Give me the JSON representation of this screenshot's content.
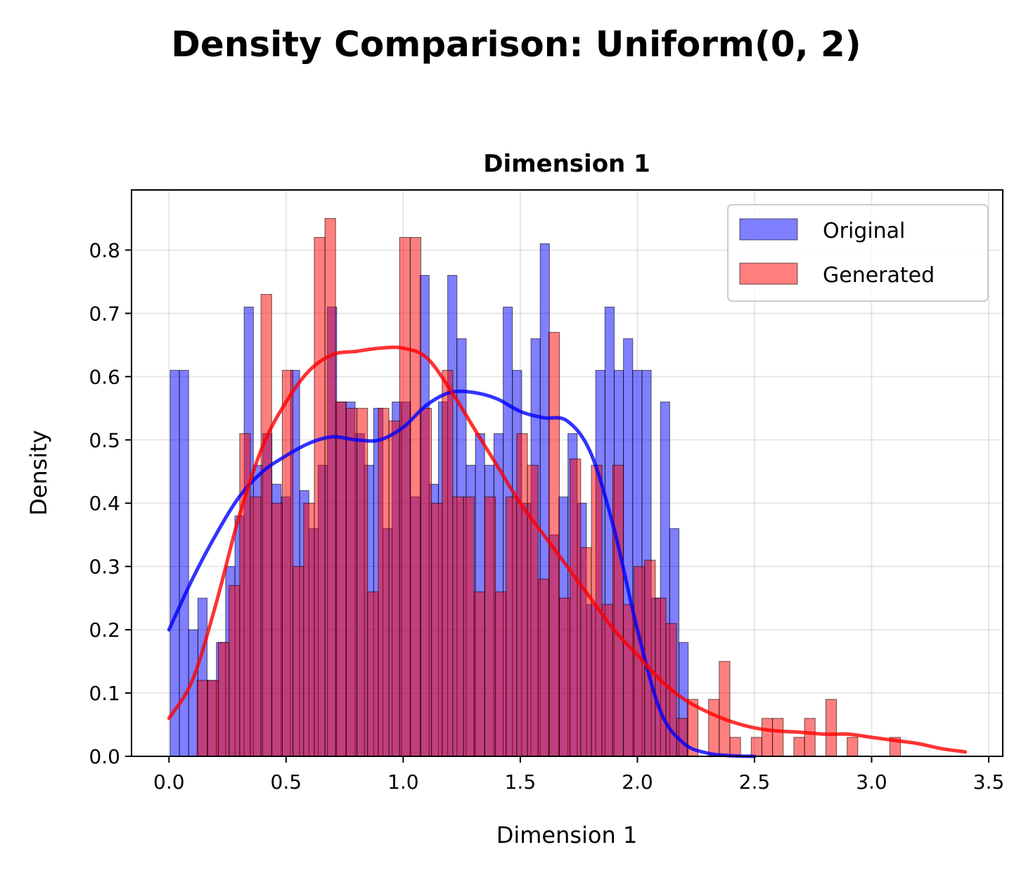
{
  "chart_data": {
    "type": "bar",
    "suptitle": "Density Comparison: Uniform(0, 2)",
    "title": "Dimension 1",
    "xlabel": "Dimension 1",
    "ylabel": "Density",
    "xlim": [
      -0.16,
      3.56
    ],
    "ylim": [
      0,
      0.895
    ],
    "xticks": [
      0.0,
      0.5,
      1.0,
      1.5,
      2.0,
      2.5,
      3.0,
      3.5
    ],
    "xtick_labels": [
      "0.0",
      "0.5",
      "1.0",
      "1.5",
      "2.0",
      "2.5",
      "3.0",
      "3.5"
    ],
    "yticks": [
      0.0,
      0.1,
      0.2,
      0.3,
      0.4,
      0.5,
      0.6,
      0.7,
      0.8
    ],
    "ytick_labels": [
      "0.0",
      "0.1",
      "0.2",
      "0.3",
      "0.4",
      "0.5",
      "0.6",
      "0.7",
      "0.8"
    ],
    "grid": true,
    "legend_position": "top-right",
    "series": [
      {
        "name": "Original",
        "color": "#0000ff",
        "kde_color": "#0000ff",
        "bin_start": 0.005,
        "bin_width": 0.0395,
        "values": [
          0.61,
          0.61,
          0.2,
          0.25,
          0.12,
          0.18,
          0.3,
          0.38,
          0.71,
          0.46,
          0.51,
          0.43,
          0.41,
          0.61,
          0.42,
          0.36,
          0.46,
          0.71,
          0.56,
          0.56,
          0.51,
          0.46,
          0.55,
          0.36,
          0.56,
          0.56,
          0.41,
          0.76,
          0.43,
          0.56,
          0.76,
          0.66,
          0.46,
          0.51,
          0.46,
          0.51,
          0.71,
          0.61,
          0.4,
          0.66,
          0.81,
          0.35,
          0.41,
          0.51,
          0.4,
          0.24,
          0.61,
          0.71,
          0.61,
          0.66,
          0.61,
          0.61,
          0.25,
          0.56,
          0.36,
          0.18
        ],
        "kde_x": [
          0.0,
          0.1,
          0.2,
          0.3,
          0.4,
          0.5,
          0.6,
          0.7,
          0.8,
          0.9,
          1.0,
          1.1,
          1.2,
          1.3,
          1.4,
          1.5,
          1.6,
          1.7,
          1.8,
          1.9,
          2.0,
          2.1,
          2.2,
          2.3,
          2.4,
          2.5
        ],
        "kde_y": [
          0.2,
          0.28,
          0.35,
          0.41,
          0.45,
          0.475,
          0.495,
          0.505,
          0.5,
          0.5,
          0.52,
          0.555,
          0.575,
          0.575,
          0.565,
          0.545,
          0.535,
          0.53,
          0.48,
          0.36,
          0.2,
          0.07,
          0.02,
          0.005,
          0.001,
          0.0
        ]
      },
      {
        "name": "Generated",
        "color": "#ff0000",
        "kde_color": "#ff0000",
        "bin_start": 0.12,
        "bin_width": 0.0455,
        "values": [
          0.12,
          0.12,
          0.18,
          0.27,
          0.51,
          0.41,
          0.73,
          0.4,
          0.61,
          0.3,
          0.4,
          0.82,
          0.85,
          0.56,
          0.55,
          0.55,
          0.26,
          0.55,
          0.53,
          0.82,
          0.82,
          0.55,
          0.4,
          0.61,
          0.41,
          0.41,
          0.26,
          0.41,
          0.26,
          0.41,
          0.51,
          0.46,
          0.28,
          0.67,
          0.25,
          0.47,
          0.33,
          0.46,
          0.24,
          0.46,
          0.24,
          0.3,
          0.31,
          0.25,
          0.21,
          0.06,
          0.09,
          0.0,
          0.09,
          0.15,
          0.03,
          0.0,
          0.03,
          0.06,
          0.06,
          0.0,
          0.03,
          0.06,
          0.0,
          0.09,
          0.0,
          0.03,
          0.0,
          0.0,
          0.0,
          0.03
        ],
        "kde_x": [
          0.0,
          0.1,
          0.2,
          0.3,
          0.4,
          0.5,
          0.6,
          0.7,
          0.8,
          0.9,
          1.0,
          1.1,
          1.2,
          1.3,
          1.4,
          1.5,
          1.6,
          1.7,
          1.8,
          1.9,
          2.0,
          2.1,
          2.2,
          2.3,
          2.4,
          2.5,
          2.6,
          2.7,
          2.8,
          2.9,
          3.0,
          3.1,
          3.2,
          3.3,
          3.4
        ],
        "kde_y": [
          0.06,
          0.12,
          0.24,
          0.38,
          0.49,
          0.56,
          0.61,
          0.635,
          0.64,
          0.645,
          0.645,
          0.63,
          0.58,
          0.52,
          0.46,
          0.4,
          0.35,
          0.3,
          0.25,
          0.2,
          0.16,
          0.12,
          0.09,
          0.07,
          0.055,
          0.045,
          0.04,
          0.038,
          0.035,
          0.035,
          0.03,
          0.025,
          0.02,
          0.012,
          0.007
        ]
      }
    ]
  }
}
